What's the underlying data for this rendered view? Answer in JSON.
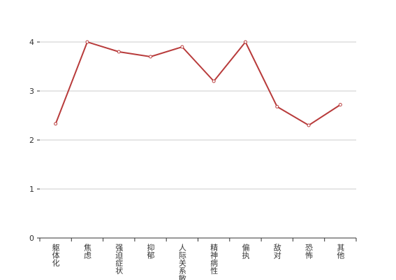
{
  "chart_data": {
    "type": "line",
    "categories": [
      "躯体化",
      "焦虑",
      "强迫症状",
      "抑郁",
      "人际关系敏感",
      "精神病性",
      "偏执",
      "敌对",
      "恐怖",
      "其他"
    ],
    "values": [
      2.33,
      4.0,
      3.8,
      3.7,
      3.9,
      3.2,
      4.0,
      2.68,
      2.3,
      2.72
    ],
    "color": "#b83b3b",
    "ylim": [
      0,
      4
    ],
    "yticks": [
      0,
      1,
      2,
      3,
      4
    ],
    "grid": true
  }
}
